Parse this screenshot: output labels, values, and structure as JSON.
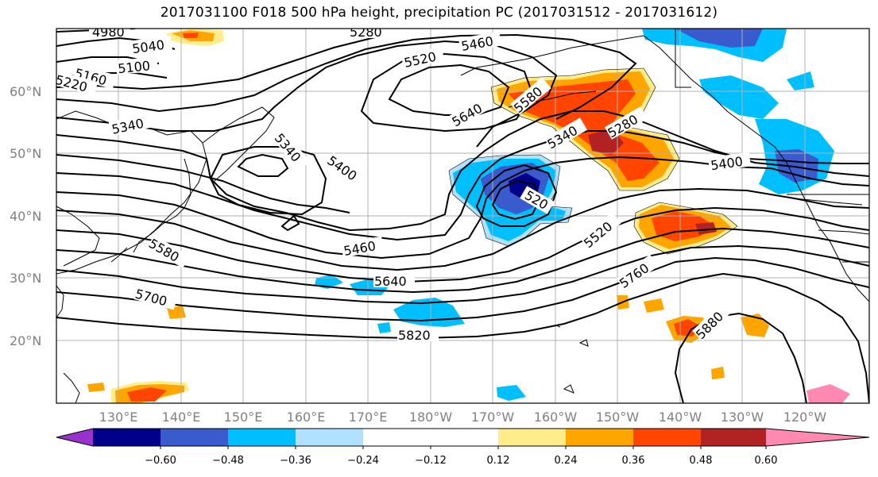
{
  "title": "2017031100 F018 500 hPa height, precipitation PC (2017031512 - 2017031612)",
  "lat_labels": [
    "60°N",
    "50°N",
    "40°N",
    "30°N",
    "20°N"
  ],
  "lon_labels": [
    "130°E",
    "140°E",
    "150°E",
    "160°E",
    "170°E",
    "180°W",
    "170°W",
    "160°W",
    "150°W",
    "140°W",
    "130°W",
    "120°W"
  ],
  "contour_labels": [
    "4980",
    "5040",
    "5100",
    "5160",
    "5220",
    "5280",
    "5340",
    "5340",
    "5400",
    "5460",
    "5520",
    "5580",
    "5640",
    "5700",
    "5760",
    "5820",
    "5880",
    "5460",
    "5520",
    "5640",
    "5580",
    "5400",
    "5340",
    "5280",
    "520"
  ],
  "colorbar": {
    "ticks": [
      "−0.60",
      "−0.48",
      "−0.36",
      "−0.24",
      "−0.12",
      "0.12",
      "0.24",
      "0.36",
      "0.48",
      "0.60"
    ],
    "colors": [
      "#9932CC",
      "#00008B",
      "#3A5BCD",
      "#00BFFF",
      "#B0E2FF",
      "#FFFFFF",
      "#FFEC8B",
      "#FFA500",
      "#FF4500",
      "#B22222",
      "#FF89B0"
    ]
  }
}
